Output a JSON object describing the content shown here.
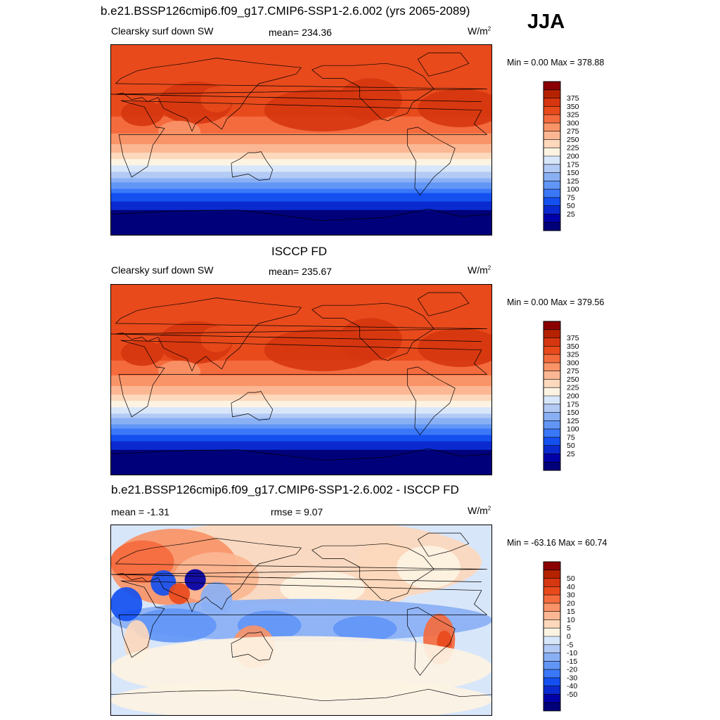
{
  "header": {
    "title": "b.e21.BSSP126cmip6.f09_g17.CMIP6-SSP1-2.6.002 (yrs 2065-2089)",
    "season": "JJA"
  },
  "colors": {
    "abs_scale": [
      "#00007a",
      "#0000a8",
      "#0a2ad0",
      "#1450f0",
      "#3a78f8",
      "#6296f6",
      "#8ab0f4",
      "#b2caf4",
      "#d8e6fa",
      "#fdf3e3",
      "#fcd8bc",
      "#fbb793",
      "#f99468",
      "#f46b3e",
      "#e84a1c",
      "#d63610",
      "#b52200",
      "#8b0000"
    ],
    "diff_scale": [
      "#00007a",
      "#0000a8",
      "#0a2ad0",
      "#1450f0",
      "#3a78f8",
      "#6296f6",
      "#8ab0f4",
      "#b2caf4",
      "#d8e6fa",
      "#fdf3e3",
      "#fcd8bc",
      "#fbb793",
      "#f99468",
      "#f46b3e",
      "#e84a1c",
      "#d63610",
      "#b52200",
      "#8b0000"
    ]
  },
  "panels": [
    {
      "heading": "",
      "left_label": "Clearsky surf down SW",
      "center_label": "mean= 234.36",
      "units": "W/m",
      "units_sup": "2",
      "minmax": "Min =   0.00 Max = 378.88"
    },
    {
      "heading": "ISCCP FD",
      "left_label": "Clearsky surf down SW",
      "center_label": "mean= 235.67",
      "units": "W/m",
      "units_sup": "2",
      "minmax": "Min =   0.00 Max = 379.56"
    },
    {
      "heading": "b.e21.BSSP126cmip6.f09_g17.CMIP6-SSP1-2.6.002 - ISCCP FD",
      "left_label": "mean =  -1.31",
      "center_label": "rmse =   9.07",
      "units": "W/m",
      "units_sup": "2",
      "minmax": "Min = -63.16 Max =  60.74"
    }
  ],
  "chart_data": [
    {
      "type": "heatmap",
      "subtype": "global map contour",
      "variable": "Clearsky surf down SW",
      "units": "W/m2",
      "mean": 234.36,
      "min": 0.0,
      "max": 378.88,
      "colorbar_levels": [
        25,
        50,
        75,
        100,
        125,
        150,
        175,
        200,
        225,
        250,
        275,
        300,
        325,
        350,
        375
      ],
      "colorbar_labels": [
        "375",
        "350",
        "325",
        "300",
        "275",
        "250",
        "225",
        "200",
        "175",
        "150",
        "125",
        "100",
        "75",
        "50",
        "25"
      ],
      "latitude_bands": [
        {
          "lat": 90,
          "value": 340
        },
        {
          "lat": 60,
          "value": 345
        },
        {
          "lat": 30,
          "value": 335
        },
        {
          "lat": 10,
          "value": 310
        },
        {
          "lat": -10,
          "value": 260
        },
        {
          "lat": -30,
          "value": 175
        },
        {
          "lat": -50,
          "value": 75
        },
        {
          "lat": -70,
          "value": 10
        },
        {
          "lat": -90,
          "value": 0
        }
      ]
    },
    {
      "type": "heatmap",
      "subtype": "global map contour",
      "variable": "Clearsky surf down SW",
      "units": "W/m2",
      "mean": 235.67,
      "min": 0.0,
      "max": 379.56,
      "colorbar_levels": [
        25,
        50,
        75,
        100,
        125,
        150,
        175,
        200,
        225,
        250,
        275,
        300,
        325,
        350,
        375
      ],
      "colorbar_labels": [
        "375",
        "350",
        "325",
        "300",
        "275",
        "250",
        "225",
        "200",
        "175",
        "150",
        "125",
        "100",
        "75",
        "50",
        "25"
      ],
      "latitude_bands": [
        {
          "lat": 90,
          "value": 335
        },
        {
          "lat": 60,
          "value": 340
        },
        {
          "lat": 30,
          "value": 340
        },
        {
          "lat": 10,
          "value": 315
        },
        {
          "lat": -10,
          "value": 265
        },
        {
          "lat": -30,
          "value": 180
        },
        {
          "lat": -50,
          "value": 80
        },
        {
          "lat": -70,
          "value": 10
        },
        {
          "lat": -90,
          "value": 0
        }
      ]
    },
    {
      "type": "heatmap",
      "subtype": "global map contour difference",
      "units": "W/m2",
      "mean": -1.31,
      "rmse": 9.07,
      "min": -63.16,
      "max": 60.74,
      "colorbar_levels": [
        -50,
        -40,
        -30,
        -20,
        -15,
        -10,
        -5,
        0,
        5,
        10,
        15,
        20,
        30,
        40,
        50
      ],
      "colorbar_labels": [
        "50",
        "40",
        "30",
        "20",
        "15",
        "10",
        "5",
        "0",
        "-5",
        "-10",
        "-15",
        "-20",
        "-30",
        "-40",
        "-50"
      ]
    }
  ]
}
